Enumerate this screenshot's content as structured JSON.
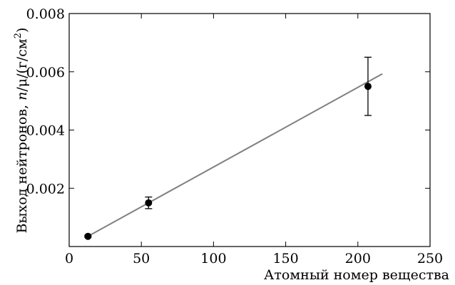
{
  "chart_data": {
    "type": "scatter",
    "title": "",
    "xlabel": "Атомный номер вещества",
    "ylabel": "Выход нейтронов, n/μ/(г/см²)",
    "ylabel_parts": {
      "text": "Выход нейтронов, ",
      "n": "n",
      "mid": "/μ/(г/см",
      "sup": "2",
      "close": ")"
    },
    "xlim": [
      0,
      250
    ],
    "ylim": [
      0,
      0.008
    ],
    "xticks": [
      0,
      50,
      100,
      150,
      200,
      250
    ],
    "xtick_labels": [
      "0",
      "50",
      "100",
      "150",
      "200",
      "250"
    ],
    "yticks": [
      0.002,
      0.004,
      0.006,
      0.008
    ],
    "ytick_labels": [
      "0.002",
      "0.004",
      "0.006",
      "0.008"
    ],
    "grid": false,
    "series": [
      {
        "points": [
          {
            "x": 13,
            "y": 0.00035,
            "err": 3e-05
          },
          {
            "x": 55,
            "y": 0.0015,
            "err": 0.0002
          },
          {
            "x": 207,
            "y": 0.0055,
            "err": 0.001
          }
        ],
        "color": "#000000"
      }
    ],
    "fit_line": {
      "x": [
        13,
        217
      ],
      "y": [
        0.00035,
        0.00593
      ],
      "color": "#808080"
    }
  }
}
